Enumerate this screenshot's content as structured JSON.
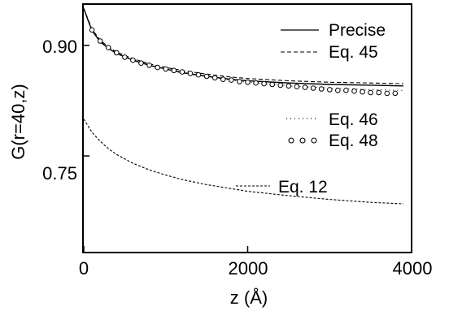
{
  "chart_data": {
    "type": "line",
    "title": "",
    "xlabel": "z (Å)",
    "ylabel": "G(r=40,z)",
    "xlim": [
      0,
      4000
    ],
    "ylim": [
      0.62,
      0.955
    ],
    "x_ticks": [
      "0",
      "2000",
      "4000"
    ],
    "y_ticks": [
      "0.75",
      "0.90"
    ],
    "grid": false,
    "legend_placement": "inside-right",
    "series": [
      {
        "name": "Precise",
        "style": "solid",
        "x": [
          0,
          50,
          100,
          200,
          300,
          400,
          600,
          800,
          1000,
          1200,
          1500,
          1800,
          2000,
          2500,
          3000,
          3500,
          3900
        ],
        "y": [
          0.95,
          0.935,
          0.92,
          0.905,
          0.896,
          0.889,
          0.88,
          0.873,
          0.868,
          0.863,
          0.858,
          0.854,
          0.852,
          0.849,
          0.847,
          0.846,
          0.845
        ]
      },
      {
        "name": "Eq. 45",
        "style": "dashed",
        "x": [
          0,
          50,
          100,
          200,
          300,
          400,
          600,
          800,
          1000,
          1200,
          1500,
          1800,
          2000,
          2500,
          3000,
          3500,
          3900
        ],
        "y": [
          0.95,
          0.936,
          0.922,
          0.907,
          0.898,
          0.891,
          0.882,
          0.875,
          0.87,
          0.866,
          0.861,
          0.857,
          0.855,
          0.852,
          0.85,
          0.849,
          0.848
        ]
      },
      {
        "name": "Eq. 46",
        "style": "dotted",
        "x": [
          0,
          50,
          100,
          200,
          300,
          400,
          600,
          800,
          1000,
          1200,
          1500,
          1800,
          2000,
          2500,
          3000,
          3500,
          3900
        ],
        "y": [
          0.95,
          0.934,
          0.921,
          0.906,
          0.897,
          0.89,
          0.881,
          0.874,
          0.868,
          0.864,
          0.858,
          0.853,
          0.85,
          0.845,
          0.842,
          0.84,
          0.839
        ]
      },
      {
        "name": "Eq. 48",
        "style": "circles",
        "x": [
          100,
          200,
          300,
          400,
          500,
          600,
          700,
          800,
          900,
          1000,
          1100,
          1200,
          1300,
          1400,
          1500,
          1600,
          1700,
          1800,
          1900,
          2000,
          2100,
          2200,
          2300,
          2400,
          2500,
          2600,
          2700,
          2800,
          2900,
          3000,
          3100,
          3200,
          3300,
          3400,
          3500,
          3600,
          3700,
          3800
        ],
        "y": [
          0.921,
          0.906,
          0.897,
          0.89,
          0.884,
          0.88,
          0.876,
          0.873,
          0.87,
          0.868,
          0.866,
          0.864,
          0.862,
          0.86,
          0.858,
          0.856,
          0.854,
          0.853,
          0.851,
          0.85,
          0.849,
          0.848,
          0.847,
          0.846,
          0.845,
          0.844,
          0.843,
          0.842,
          0.841,
          0.84,
          0.839,
          0.839,
          0.838,
          0.837,
          0.836,
          0.836,
          0.835,
          0.835
        ]
      },
      {
        "name": "Eq. 12",
        "style": "fine-dashed",
        "x": [
          0,
          100,
          200,
          300,
          400,
          600,
          800,
          1000,
          1200,
          1500,
          2000,
          2500,
          3000,
          3500,
          3900
        ],
        "y": [
          0.8,
          0.782,
          0.77,
          0.76,
          0.752,
          0.74,
          0.731,
          0.724,
          0.718,
          0.711,
          0.702,
          0.696,
          0.691,
          0.687,
          0.685
        ]
      }
    ]
  }
}
